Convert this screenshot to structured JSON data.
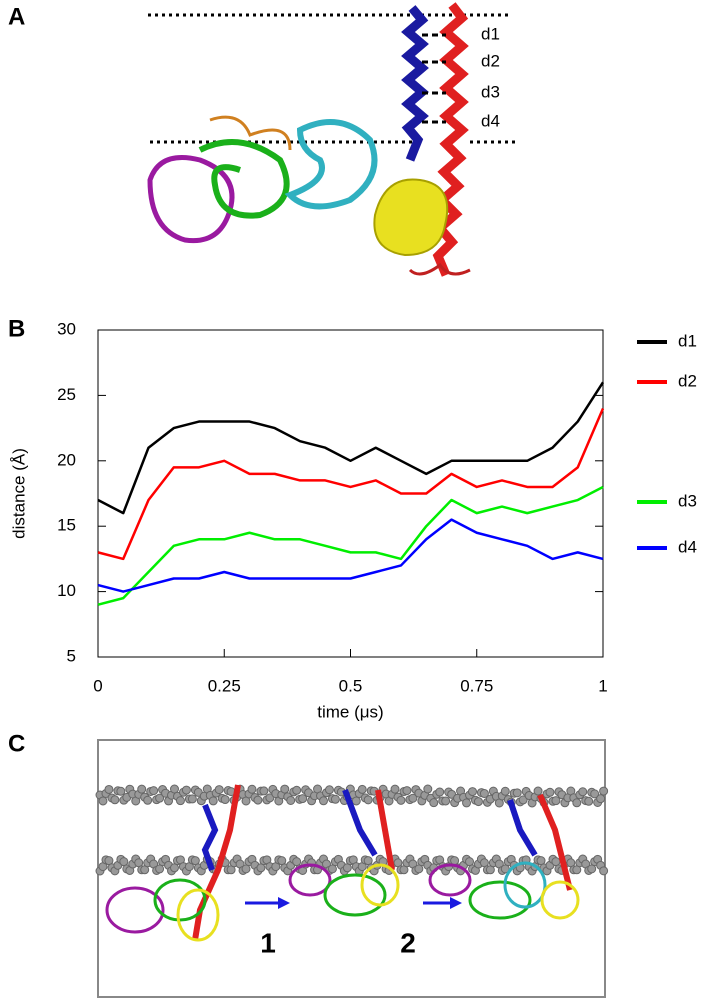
{
  "panels": {
    "a": {
      "label": "A",
      "distance_labels": [
        "d1",
        "d2",
        "d3",
        "d4"
      ]
    },
    "b": {
      "label": "B"
    },
    "c": {
      "label": "C",
      "step_labels": [
        "1",
        "2"
      ]
    }
  },
  "chart_data": {
    "type": "line",
    "x": [
      0,
      0.05,
      0.1,
      0.15,
      0.2,
      0.25,
      0.3,
      0.35,
      0.4,
      0.45,
      0.5,
      0.55,
      0.6,
      0.65,
      0.7,
      0.75,
      0.8,
      0.85,
      0.9,
      0.95,
      1
    ],
    "series": [
      {
        "name": "d1",
        "color": "#000000",
        "values": [
          17,
          16,
          21,
          22.5,
          23,
          23,
          23,
          22.5,
          21.5,
          21,
          20,
          21,
          20,
          19,
          20,
          20,
          20,
          20,
          21,
          23,
          26
        ]
      },
      {
        "name": "d2",
        "color": "#ff0000",
        "values": [
          13,
          12.5,
          17,
          19.5,
          19.5,
          20,
          19,
          19,
          18.5,
          18.5,
          18,
          18.5,
          17.5,
          17.5,
          19,
          18,
          18.5,
          18,
          18,
          19.5,
          24
        ]
      },
      {
        "name": "d3",
        "color": "#00ee00",
        "values": [
          9,
          9.5,
          11.5,
          13.5,
          14,
          14,
          14.5,
          14,
          14,
          13.5,
          13,
          13,
          12.5,
          15,
          17,
          16,
          16.5,
          16,
          16.5,
          17,
          18
        ]
      },
      {
        "name": "d4",
        "color": "#0000ff",
        "values": [
          10.5,
          10,
          10.5,
          11,
          11,
          11.5,
          11,
          11,
          11,
          11,
          11,
          11.5,
          12,
          14,
          15.5,
          14.5,
          14,
          13.5,
          12.5,
          13,
          12.5
        ]
      }
    ],
    "xlabel": "time (μs)",
    "ylabel": "distance (Å)",
    "xlim": [
      0,
      1
    ],
    "xticks": [
      0,
      0.25,
      0.5,
      0.75,
      1
    ],
    "ylim": [
      5,
      30
    ],
    "yticks": [
      5,
      10,
      15,
      20,
      25,
      30
    ]
  }
}
